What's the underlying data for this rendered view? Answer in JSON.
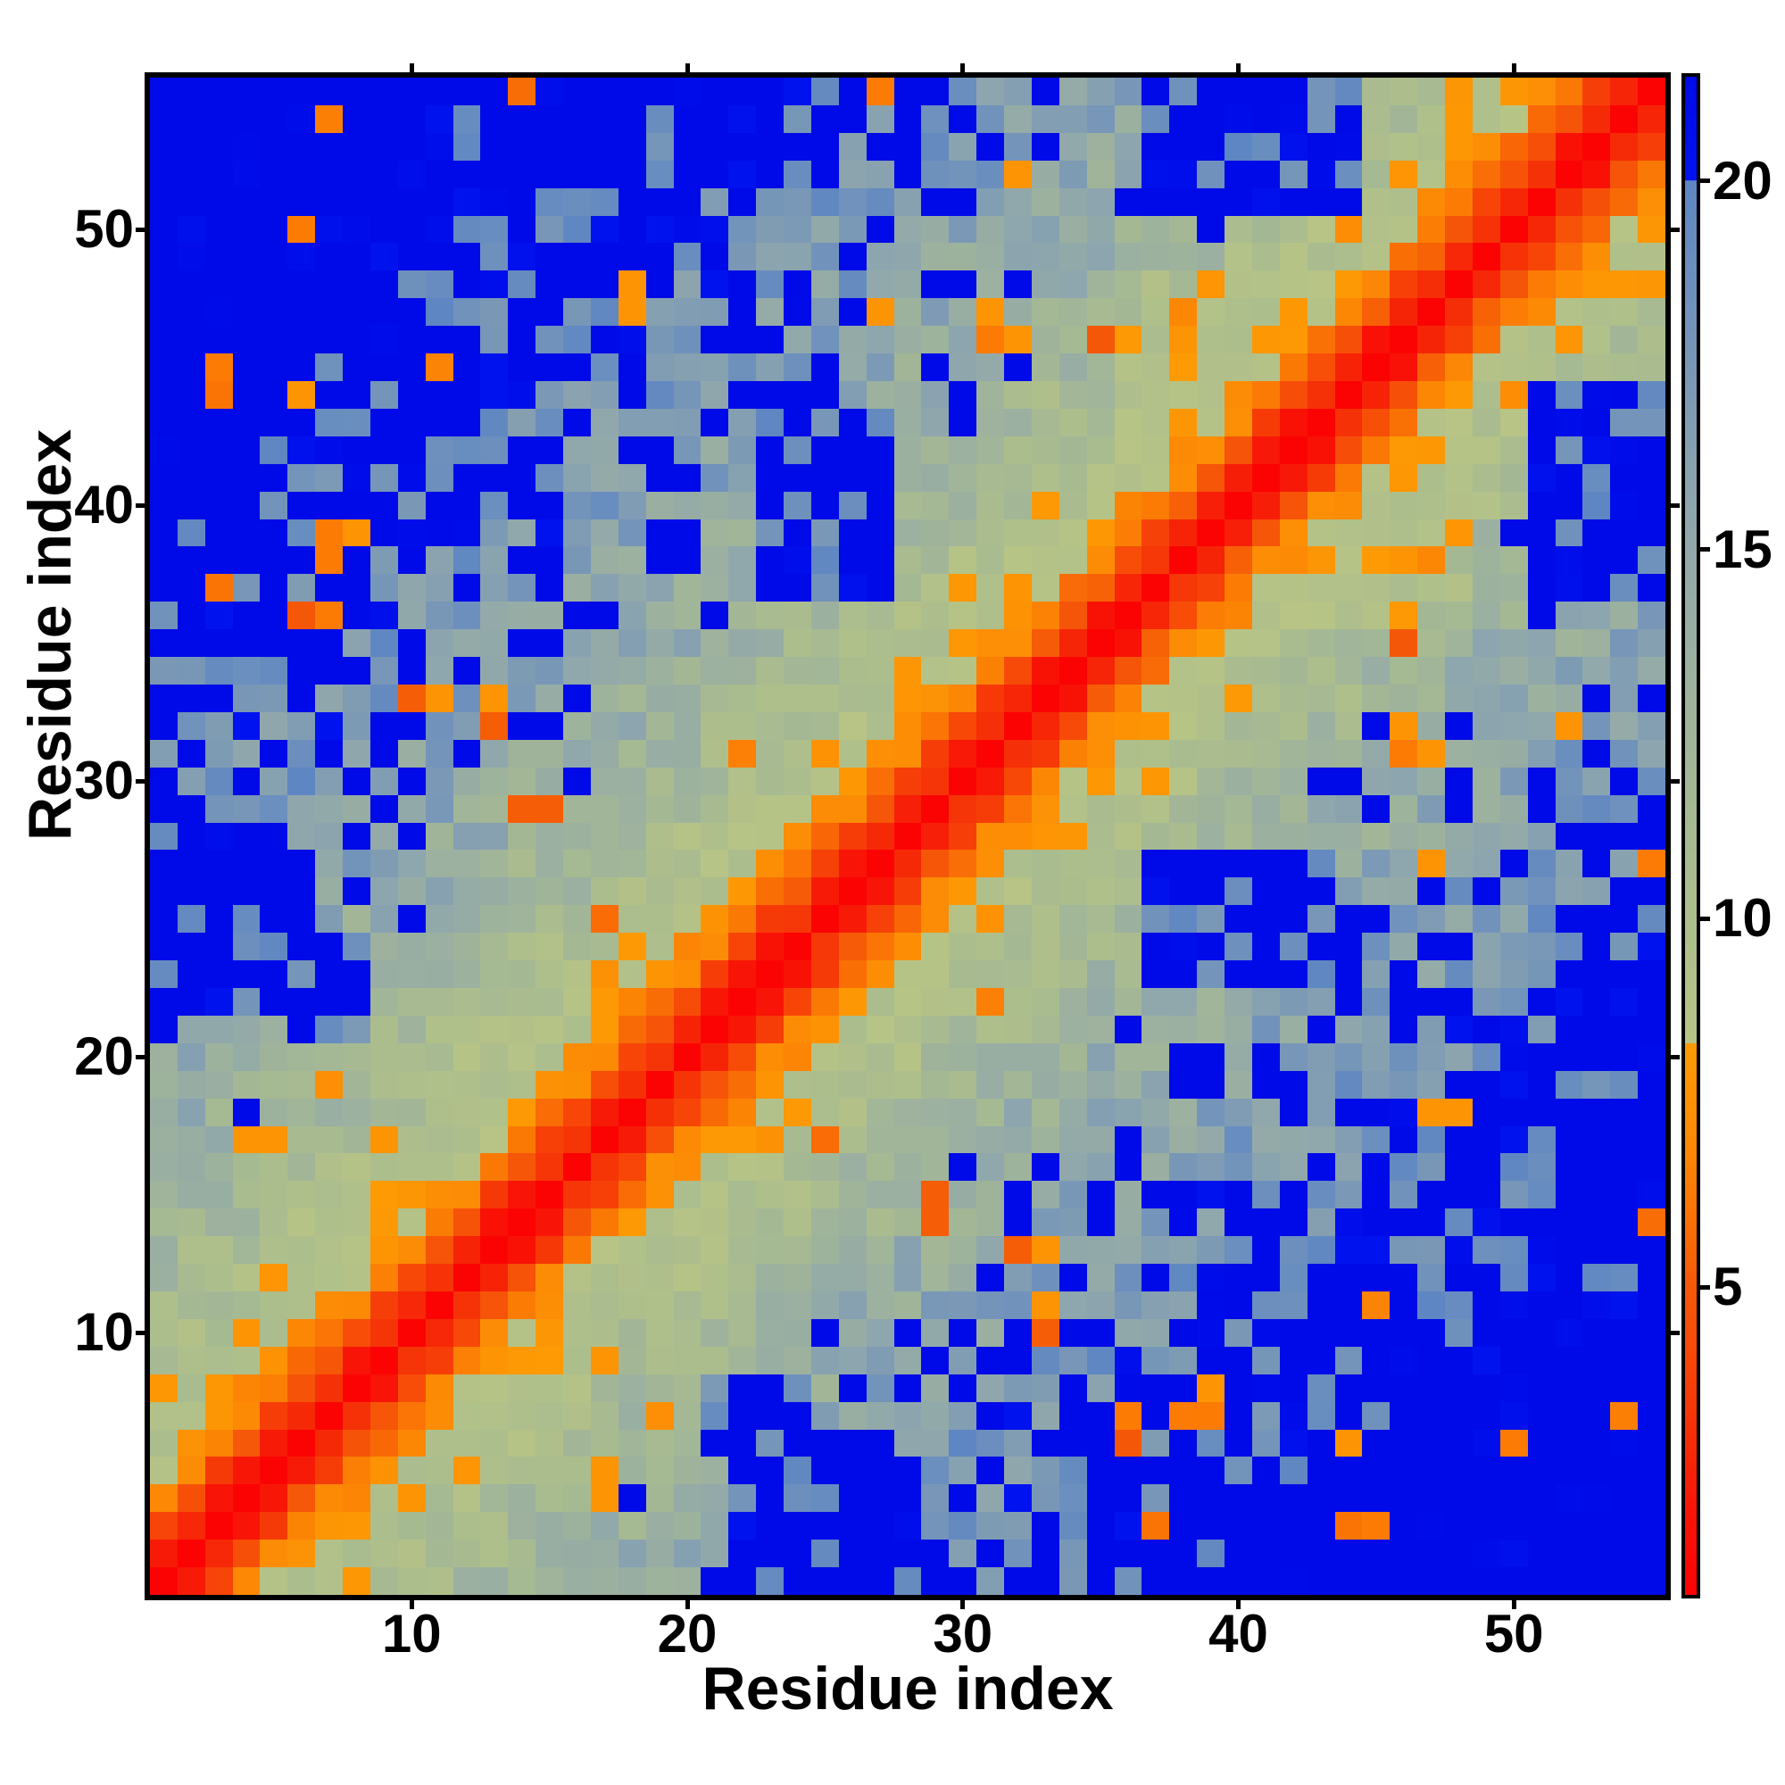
{
  "figure": {
    "background": "#ffffff",
    "frame_color": "#000000"
  },
  "chart_data": {
    "type": "heatmap",
    "title": "",
    "xlabel": "Residue index",
    "ylabel": "Residue index",
    "n": 55,
    "x_ticks": [
      10,
      20,
      30,
      40,
      50
    ],
    "y_ticks": [
      10,
      20,
      30,
      40,
      50
    ],
    "grid": false,
    "legend_position": "right-colorbar",
    "colorbar": {
      "ticks": [
        5,
        10,
        15,
        20
      ],
      "vmin": 0.83,
      "vmax": 21.4
    },
    "colormap": {
      "description": "red-orange for short distances, abrupt switch to khaki then slate blue, saturated blue above 20",
      "stops": [
        [
          0.83,
          "#fb0303"
        ],
        [
          2.0,
          "#f81507"
        ],
        [
          3.0,
          "#f52e07"
        ],
        [
          4.2,
          "#f74b08"
        ],
        [
          5.0,
          "#f55708"
        ],
        [
          6.0,
          "#fa7405"
        ],
        [
          7.0,
          "#fc8a05"
        ],
        [
          8.3,
          "#fd9a04"
        ],
        [
          8.301,
          "#b7c486"
        ],
        [
          11.0,
          "#a8bb90"
        ],
        [
          13.5,
          "#9bb0a0"
        ],
        [
          15.5,
          "#8ea6ad"
        ],
        [
          17.0,
          "#7e9bb4"
        ],
        [
          18.5,
          "#6d90bd"
        ],
        [
          19.99,
          "#5e86c2"
        ],
        [
          20.0,
          "#0013ef"
        ],
        [
          21.4,
          "#000ae8"
        ]
      ]
    },
    "value_model": {
      "description": "symmetric residue-residue distance matrix; value grows with sequence separation, saturating blue >= 20",
      "diag": 0.83,
      "base_offset": 0.83,
      "base_scale": 3.35,
      "band": [
        [
          1.6,
          1.8
        ],
        [
          3.4,
          2.0
        ],
        [
          5.4,
          2.1
        ],
        [
          6.6,
          2.4
        ],
        [
          7.8,
          2.6
        ]
      ],
      "noise_a": 0.6,
      "noise_b": 0.13,
      "speckle_start": 12.5,
      "speckle_div": 16,
      "orange_speckle_p": 0.013,
      "vmin": 0.83,
      "vmax": 21.4,
      "seed": 7
    },
    "features": {
      "wide_band_ranges": [
        [
          36,
          48,
          0.75
        ],
        [
          5,
          13,
          0.85
        ]
      ],
      "blue_blobs": [
        [
          22,
          28,
          1,
          5,
          20.6
        ],
        [
          23,
          27,
          37,
          43,
          20.6
        ],
        [
          19,
          20,
          38,
          39,
          20.5
        ],
        [
          21,
          24,
          6,
          8,
          20.3
        ],
        [
          53,
          55,
          38,
          42,
          20.6
        ],
        [
          37,
          44,
          51,
          55,
          20.2
        ],
        [
          4,
          9,
          48,
          52,
          20.2
        ],
        [
          45,
          52,
          10,
          16,
          17.5
        ]
      ],
      "contact_spots": [
        [
          3,
          37,
          6.0
        ],
        [
          6,
          36,
          5.0
        ],
        [
          7,
          36,
          6.3
        ],
        [
          10,
          33,
          5.2
        ],
        [
          11,
          33,
          7.8
        ],
        [
          13,
          33,
          7.8
        ],
        [
          13,
          32,
          5.2
        ],
        [
          14,
          29,
          5.2
        ],
        [
          3,
          44,
          6.0
        ],
        [
          6,
          44,
          7.8
        ],
        [
          7,
          39,
          6.3
        ],
        [
          8,
          39,
          7.8
        ],
        [
          17,
          4,
          7.8
        ],
        [
          17,
          5,
          7.8
        ],
        [
          17,
          9,
          7.8
        ],
        [
          5,
          17,
          7.8
        ],
        [
          29,
          15,
          5.2
        ],
        [
          33,
          13,
          6.3
        ],
        [
          48,
          18,
          7.8
        ],
        [
          18,
          47,
          7.8
        ],
        [
          27,
          47,
          7.8
        ],
        [
          31,
          46,
          6.3
        ],
        [
          32,
          46,
          7.8
        ],
        [
          31,
          47,
          7.8
        ],
        [
          38,
          7,
          6.3
        ],
        [
          39,
          8,
          7.8
        ],
        [
          52,
          32,
          7.8
        ],
        [
          55,
          27,
          6.3
        ],
        [
          46,
          35,
          5.0
        ],
        [
          46,
          38,
          7.8
        ],
        [
          45,
          3,
          6.3
        ],
        [
          50,
          6,
          6.3
        ]
      ]
    }
  }
}
